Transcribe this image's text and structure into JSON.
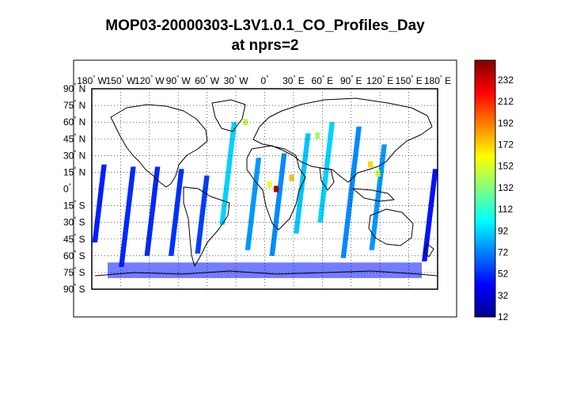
{
  "chart_data": {
    "type": "heatmap",
    "title": "MOP03-20000303-L3V1.0.1_CO_Profiles_Day",
    "subtitle": "at nprs=2",
    "projection": "equirectangular world map with coastlines",
    "xlim": [
      -180,
      180
    ],
    "ylim": [
      -90,
      90
    ],
    "grid": "dotted",
    "x_ticks": [
      {
        "value": -180,
        "label": "180",
        "dir": "W"
      },
      {
        "value": -150,
        "label": "150",
        "dir": "W"
      },
      {
        "value": -120,
        "label": "120",
        "dir": "W"
      },
      {
        "value": -90,
        "label": "90",
        "dir": "W"
      },
      {
        "value": -60,
        "label": "60",
        "dir": "W"
      },
      {
        "value": -30,
        "label": "30",
        "dir": "W"
      },
      {
        "value": 0,
        "label": "0",
        "dir": ""
      },
      {
        "value": 30,
        "label": "30",
        "dir": "E"
      },
      {
        "value": 60,
        "label": "60",
        "dir": "E"
      },
      {
        "value": 90,
        "label": "90",
        "dir": "E"
      },
      {
        "value": 120,
        "label": "120",
        "dir": "E"
      },
      {
        "value": 150,
        "label": "150",
        "dir": "E"
      },
      {
        "value": 180,
        "label": "180",
        "dir": "E"
      }
    ],
    "y_ticks": [
      {
        "value": 90,
        "label": "90",
        "dir": "N"
      },
      {
        "value": 75,
        "label": "75",
        "dir": "N"
      },
      {
        "value": 60,
        "label": "60",
        "dir": "N"
      },
      {
        "value": 45,
        "label": "45",
        "dir": "N"
      },
      {
        "value": 30,
        "label": "30",
        "dir": "N"
      },
      {
        "value": 15,
        "label": "15",
        "dir": "N"
      },
      {
        "value": 0,
        "label": "0",
        "dir": ""
      },
      {
        "value": -15,
        "label": "15",
        "dir": "S"
      },
      {
        "value": -30,
        "label": "30",
        "dir": "S"
      },
      {
        "value": -45,
        "label": "45",
        "dir": "S"
      },
      {
        "value": -60,
        "label": "60",
        "dir": "S"
      },
      {
        "value": -75,
        "label": "75",
        "dir": "S"
      },
      {
        "value": -90,
        "label": "90",
        "dir": "S"
      }
    ],
    "colorbar": {
      "colormap": "jet",
      "range": [
        12,
        242
      ],
      "tick_labels": [
        "232",
        "212",
        "192",
        "172",
        "152",
        "132",
        "112",
        "92",
        "72",
        "52",
        "32",
        "12"
      ]
    },
    "swaths": [
      {
        "lon": -172,
        "lat": [
          -48,
          22
        ],
        "value": 48
      },
      {
        "lon": -143,
        "lat": [
          -70,
          20
        ],
        "value": 50
      },
      {
        "lon": -117,
        "lat": [
          -60,
          20
        ],
        "value": 50
      },
      {
        "lon": -92,
        "lat": [
          -60,
          18
        ],
        "value": 52
      },
      {
        "lon": -65,
        "lat": [
          -58,
          12
        ],
        "value": 55
      },
      {
        "lon": -38,
        "lat": [
          -32,
          60
        ],
        "value": 88
      },
      {
        "lon": -12,
        "lat": [
          -55,
          28
        ],
        "value": 75
      },
      {
        "lon": 14,
        "lat": [
          -60,
          32
        ],
        "value": 72
      },
      {
        "lon": 39,
        "lat": [
          -40,
          50
        ],
        "value": 85
      },
      {
        "lon": 64,
        "lat": [
          -30,
          60
        ],
        "value": 88
      },
      {
        "lon": 90,
        "lat": [
          -62,
          56
        ],
        "value": 72
      },
      {
        "lon": 118,
        "lat": [
          -55,
          40
        ],
        "value": 75
      },
      {
        "lon": 172,
        "lat": [
          -65,
          18
        ],
        "value": 45
      }
    ],
    "hotspots": [
      {
        "lon": 5,
        "lat": 4,
        "value": 150
      },
      {
        "lon": 12,
        "lat": 0,
        "value": 232
      },
      {
        "lon": 28,
        "lat": 10,
        "value": 170
      },
      {
        "lon": 55,
        "lat": 48,
        "value": 135
      },
      {
        "lon": 110,
        "lat": 22,
        "value": 165
      },
      {
        "lon": 118,
        "lat": 14,
        "value": 145
      },
      {
        "lon": -20,
        "lat": 60,
        "value": 140
      }
    ],
    "polar_band": {
      "lat": [
        -80,
        -66
      ],
      "value": 45
    }
  }
}
